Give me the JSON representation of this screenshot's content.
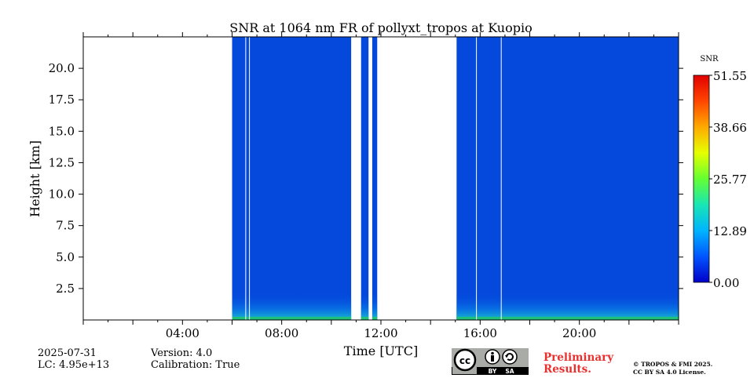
{
  "chart_data": {
    "type": "heatmap",
    "title": "SNR at 1064 nm FR of pollyxt_tropos at Kuopio",
    "xlabel": "Time [UTC]",
    "ylabel": "Height [km]",
    "x_unit": "hours UTC",
    "xlim": [
      0,
      24
    ],
    "ylim": [
      0,
      22.5
    ],
    "x_ticks": [
      4,
      8,
      12,
      16,
      20
    ],
    "x_tick_labels": [
      "04:00",
      "08:00",
      "12:00",
      "16:00",
      "20:00"
    ],
    "y_ticks": [
      2.5,
      5.0,
      7.5,
      10.0,
      12.5,
      15.0,
      17.5,
      20.0
    ],
    "y_tick_labels": [
      "2.5",
      "5.0",
      "7.5",
      "10.0",
      "12.5",
      "15.0",
      "17.5",
      "20.0"
    ],
    "data_segments": [
      {
        "start": 6.0,
        "end": 10.8
      },
      {
        "start": 11.2,
        "end": 11.5
      },
      {
        "start": 11.65,
        "end": 11.85
      },
      {
        "start": 15.05,
        "end": 24.0
      }
    ],
    "gap_lines": [
      6.55,
      6.7,
      15.85,
      16.85
    ],
    "background_value": 0.0,
    "colorbar": {
      "label": "SNR",
      "min": 0.0,
      "max": 51.55,
      "ticks": [
        0.0,
        12.89,
        25.77,
        38.66,
        51.55
      ],
      "tick_labels": [
        "0.00",
        "12.89",
        "25.77",
        "38.66",
        "51.55"
      ],
      "colormap": [
        "#0000c8",
        "#0055ff",
        "#00b4ff",
        "#19e6b4",
        "#64ff32",
        "#e6ff00",
        "#ffaa00",
        "#ff4600",
        "#e10000"
      ]
    },
    "colors": {
      "background": "#0449dc",
      "near_ground": "#0b88e8",
      "ground": "#1fc07a"
    }
  },
  "footer": {
    "date": "2025-07-31",
    "lc": "LC: 4.95e+13",
    "version": "Version: 4.0",
    "calibration": "Calibration: True",
    "preliminary_1": "Preliminary",
    "preliminary_2": "Results.",
    "copyright_1": "© TROPOS & FMI 2025.",
    "copyright_2": "CC BY SA 4.0 License.",
    "license_badge": {
      "cc": "cc",
      "by": "BY",
      "sa": "SA"
    }
  }
}
